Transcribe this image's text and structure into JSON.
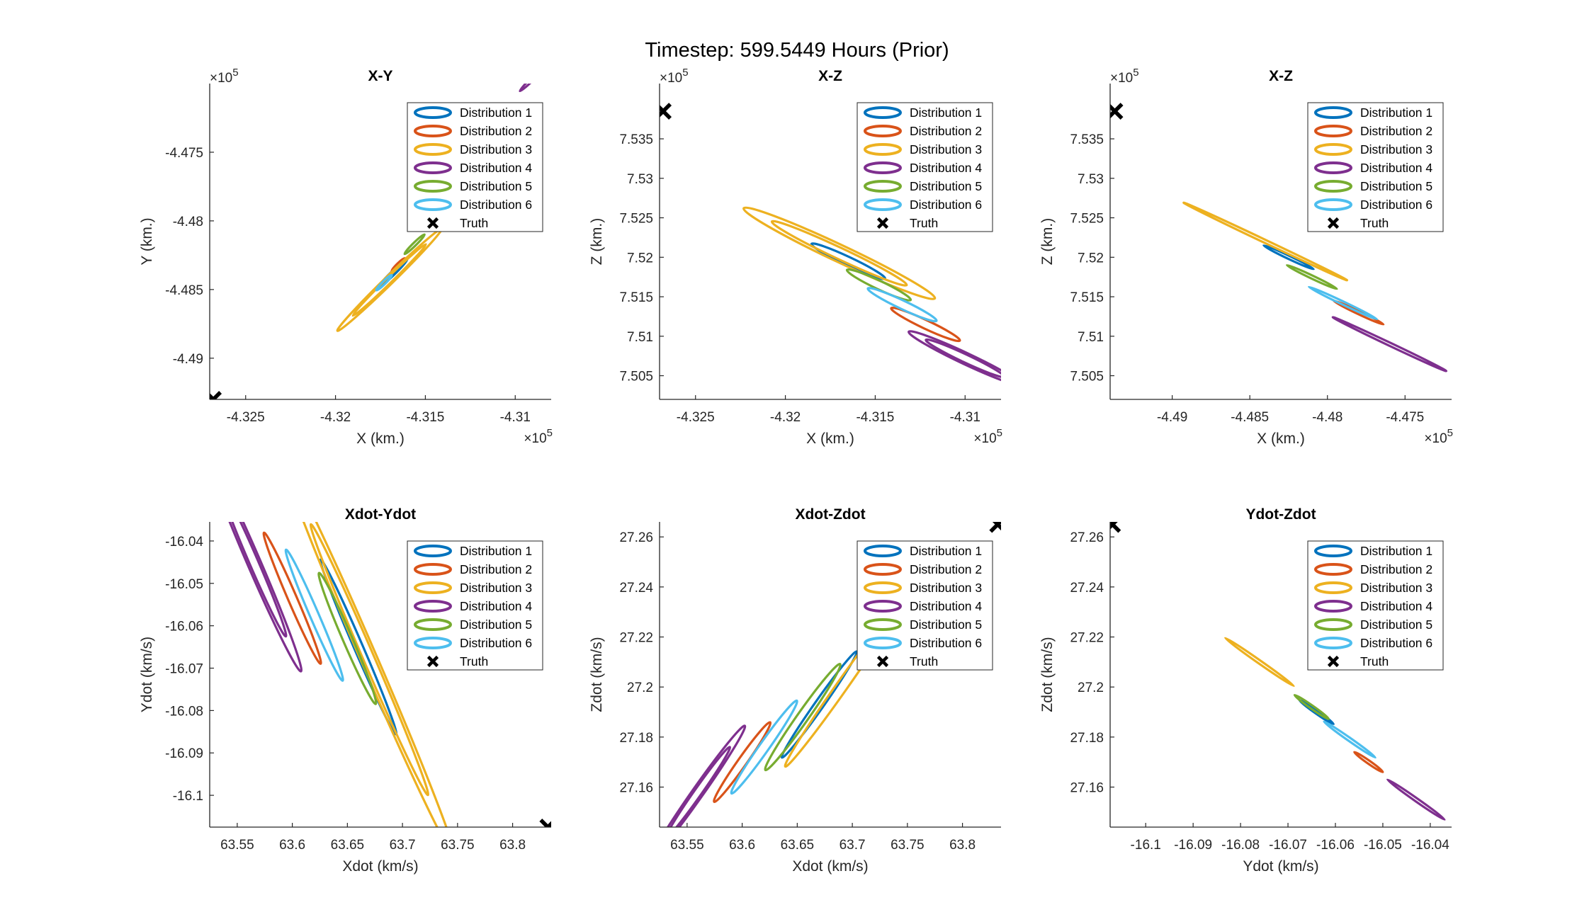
{
  "figure": {
    "title": "Timestep: 599.5449 Hours (Prior)"
  },
  "colors": {
    "Distribution 1": "#0072BD",
    "Distribution 2": "#D95319",
    "Distribution 3": "#EDB120",
    "Distribution 4": "#7E2F8E",
    "Distribution 5": "#77AC30",
    "Distribution 6": "#4DBEEE",
    "Truth": "#000000"
  },
  "chart_data": [
    {
      "type": "scatter",
      "title": "X-Y",
      "xlabel": "X (km.)",
      "ylabel": "Y (km.)",
      "xlim": [
        -432.7,
        -430.8
      ],
      "ylim": [
        -449.3,
        -447.0
      ],
      "x_exponent": "×10",
      "y_exponent": "×10",
      "exponent_power": "5",
      "xticks": [
        -432.5,
        -432,
        -431.5,
        -431
      ],
      "xtick_labels": [
        "-4.325",
        "-4.32",
        "-4.315",
        "-4.31"
      ],
      "yticks": [
        -447.5,
        -448,
        -448.5,
        -449
      ],
      "ytick_labels": [
        "-4.475",
        "-4.48",
        "-4.485",
        "-4.49"
      ],
      "legend_location": "top-right",
      "series": [
        {
          "name": "Distribution 1",
          "ellipses": [
            {
              "cx": -431.68,
              "cy": -448.38,
              "a": 0.13,
              "b": 0.012,
              "ang": 52
            },
            {
              "cx": -431.68,
              "cy": -448.38,
              "a": 0.09,
              "b": 0.008,
              "ang": 52
            }
          ]
        },
        {
          "name": "Distribution 2",
          "ellipses": [
            {
              "cx": -431.65,
              "cy": -448.32,
              "a": 0.06,
              "b": 0.007,
              "ang": 52
            }
          ]
        },
        {
          "name": "Distribution 3",
          "ellipses": [
            {
              "cx": -431.7,
              "cy": -448.43,
              "a": 0.47,
              "b": 0.025,
              "ang": 52
            },
            {
              "cx": -431.7,
              "cy": -448.43,
              "a": 0.33,
              "b": 0.017,
              "ang": 52
            }
          ]
        },
        {
          "name": "Distribution 4",
          "ellipses": [
            {
              "cx": -430.9,
              "cy": -446.96,
              "a": 0.12,
              "b": 0.008,
              "ang": 52
            }
          ]
        },
        {
          "name": "Distribution 5",
          "ellipses": [
            {
              "cx": -431.56,
              "cy": -448.17,
              "a": 0.09,
              "b": 0.008,
              "ang": 52
            }
          ]
        },
        {
          "name": "Distribution 6",
          "ellipses": [
            {
              "cx": -431.73,
              "cy": -448.45,
              "a": 0.07,
              "b": 0.006,
              "ang": 52
            }
          ]
        },
        {
          "name": "Truth",
          "points": [
            {
              "x": -432.68,
              "y": -449.3
            }
          ]
        }
      ]
    },
    {
      "type": "scatter",
      "title": "X-Z",
      "xlabel": "X (km.)",
      "ylabel": "Z (km.)",
      "xlim": [
        -432.7,
        -430.8
      ],
      "ylim": [
        750.2,
        754.2
      ],
      "x_exponent": "×10",
      "y_exponent": "×10",
      "exponent_power": "5",
      "xticks": [
        -432.5,
        -432,
        -431.5,
        -431
      ],
      "xtick_labels": [
        "-4.325",
        "-4.32",
        "-4.315",
        "-4.31"
      ],
      "yticks": [
        750.5,
        751,
        751.5,
        752,
        752.5,
        753,
        753.5
      ],
      "ytick_labels": [
        "7.505",
        "7.51",
        "7.515",
        "7.52",
        "7.525",
        "7.53",
        "7.535"
      ],
      "legend_location": "top-right",
      "series": [
        {
          "name": "Distribution 1",
          "ellipses": [
            {
              "cx": -431.65,
              "cy": 751.95,
              "a": 0.3,
              "b": 0.03,
              "ang": -47
            }
          ]
        },
        {
          "name": "Distribution 2",
          "ellipses": [
            {
              "cx": -431.22,
              "cy": 751.15,
              "a": 0.28,
              "b": 0.03,
              "ang": -47
            }
          ]
        },
        {
          "name": "Distribution 3",
          "ellipses": [
            {
              "cx": -431.7,
              "cy": 752.05,
              "a": 0.78,
              "b": 0.06,
              "ang": -47
            },
            {
              "cx": -431.7,
              "cy": 752.05,
              "a": 0.55,
              "b": 0.04,
              "ang": -47
            }
          ]
        },
        {
          "name": "Distribution 4",
          "ellipses": [
            {
              "cx": -431.0,
              "cy": 750.72,
              "a": 0.46,
              "b": 0.04,
              "ang": -47
            },
            {
              "cx": -431.0,
              "cy": 750.72,
              "a": 0.32,
              "b": 0.028,
              "ang": -47
            }
          ]
        },
        {
          "name": "Distribution 5",
          "ellipses": [
            {
              "cx": -431.48,
              "cy": 751.65,
              "a": 0.26,
              "b": 0.03,
              "ang": -47
            }
          ]
        },
        {
          "name": "Distribution 6",
          "ellipses": [
            {
              "cx": -431.35,
              "cy": 751.4,
              "a": 0.28,
              "b": 0.03,
              "ang": -47
            }
          ]
        },
        {
          "name": "Truth",
          "points": [
            {
              "x": -432.68,
              "y": 753.85
            }
          ]
        }
      ]
    },
    {
      "type": "scatter",
      "title": "X-Z",
      "xlabel": "X (km.)",
      "ylabel": "Z (km.)",
      "xlim": [
        -449.4,
        -447.2
      ],
      "ylim": [
        750.2,
        754.2
      ],
      "x_exponent": "×10",
      "y_exponent": "×10",
      "exponent_power": "5",
      "xticks": [
        -449,
        -448.5,
        -448,
        -447.5
      ],
      "xtick_labels": [
        "-4.49",
        "-4.485",
        "-4.48",
        "-4.475"
      ],
      "yticks": [
        750.5,
        751,
        751.5,
        752,
        752.5,
        753,
        753.5
      ],
      "ytick_labels": [
        "7.505",
        "7.51",
        "7.515",
        "7.52",
        "7.525",
        "7.53",
        "7.535"
      ],
      "legend_location": "top-right",
      "series": [
        {
          "name": "Distribution 1",
          "ellipses": [
            {
              "cx": -448.25,
              "cy": 752.0,
              "a": 0.22,
              "b": 0.006,
              "ang": -43
            }
          ]
        },
        {
          "name": "Distribution 2",
          "ellipses": [
            {
              "cx": -447.8,
              "cy": 751.3,
              "a": 0.22,
              "b": 0.006,
              "ang": -43
            }
          ]
        },
        {
          "name": "Distribution 3",
          "ellipses": [
            {
              "cx": -448.4,
              "cy": 752.2,
              "a": 0.72,
              "b": 0.012,
              "ang": -43
            }
          ]
        },
        {
          "name": "Distribution 4",
          "ellipses": [
            {
              "cx": -447.6,
              "cy": 750.9,
              "a": 0.5,
              "b": 0.01,
              "ang": -43
            }
          ]
        },
        {
          "name": "Distribution 5",
          "ellipses": [
            {
              "cx": -448.1,
              "cy": 751.75,
              "a": 0.22,
              "b": 0.008,
              "ang": -43
            }
          ]
        },
        {
          "name": "Distribution 6",
          "ellipses": [
            {
              "cx": -447.9,
              "cy": 751.42,
              "a": 0.3,
              "b": 0.008,
              "ang": -43
            }
          ]
        },
        {
          "name": "Truth",
          "points": [
            {
              "x": -449.37,
              "y": 753.85
            }
          ]
        }
      ]
    },
    {
      "type": "scatter",
      "title": "Xdot-Ydot",
      "xlabel": "Xdot (km/s)",
      "ylabel": "Ydot (km/s)",
      "xlim": [
        63.525,
        63.835
      ],
      "ylim": [
        -16.1075,
        -16.0355
      ],
      "xticks": [
        63.55,
        63.6,
        63.65,
        63.7,
        63.75,
        63.8
      ],
      "xtick_labels": [
        "63.55",
        "63.6",
        "63.65",
        "63.7",
        "63.75",
        "63.8"
      ],
      "yticks": [
        -16.04,
        -16.05,
        -16.06,
        -16.07,
        -16.08,
        -16.09,
        -16.1
      ],
      "ytick_labels": [
        "-16.04",
        "-16.05",
        "-16.06",
        "-16.07",
        "-16.08",
        "-16.09",
        "-16.1"
      ],
      "legend_location": "top-right",
      "series": [
        {
          "name": "Distribution 1",
          "ellipses": [
            {
              "cx": 63.66,
              "cy": -16.065,
              "a": 0.04,
              "b": 0.0012,
              "ang": -31
            }
          ]
        },
        {
          "name": "Distribution 2",
          "ellipses": [
            {
              "cx": 63.6,
              "cy": -16.0535,
              "a": 0.03,
              "b": 0.0012,
              "ang": -31
            }
          ]
        },
        {
          "name": "Distribution 3",
          "ellipses": [
            {
              "cx": 63.67,
              "cy": -16.068,
              "a": 0.09,
              "b": 0.0022,
              "ang": -31
            },
            {
              "cx": 63.67,
              "cy": -16.068,
              "a": 0.062,
              "b": 0.0015,
              "ang": -31
            }
          ]
        },
        {
          "name": "Distribution 4",
          "ellipses": [
            {
              "cx": 63.565,
              "cy": -16.045,
              "a": 0.05,
              "b": 0.0018,
              "ang": -31
            },
            {
              "cx": 63.565,
              "cy": -16.045,
              "a": 0.034,
              "b": 0.0012,
              "ang": -31
            }
          ]
        },
        {
          "name": "Distribution 5",
          "ellipses": [
            {
              "cx": 63.65,
              "cy": -16.063,
              "a": 0.03,
              "b": 0.0013,
              "ang": -31
            }
          ]
        },
        {
          "name": "Distribution 6",
          "ellipses": [
            {
              "cx": 63.62,
              "cy": -16.0575,
              "a": 0.03,
              "b": 0.0012,
              "ang": -31
            }
          ]
        },
        {
          "name": "Truth",
          "points": [
            {
              "x": 63.832,
              "y": -16.1075
            }
          ]
        }
      ]
    },
    {
      "type": "scatter",
      "title": "Xdot-Zdot",
      "xlabel": "Xdot (km/s)",
      "ylabel": "Zdot (km/s)",
      "xlim": [
        63.525,
        63.835
      ],
      "ylim": [
        27.144,
        27.266
      ],
      "xticks": [
        63.55,
        63.6,
        63.65,
        63.7,
        63.75,
        63.8
      ],
      "xtick_labels": [
        "63.55",
        "63.6",
        "63.65",
        "63.7",
        "63.75",
        "63.8"
      ],
      "yticks": [
        27.16,
        27.18,
        27.2,
        27.22,
        27.24,
        27.26
      ],
      "ytick_labels": [
        "27.16",
        "27.18",
        "27.2",
        "27.22",
        "27.24",
        "27.26"
      ],
      "legend_location": "top-right",
      "series": [
        {
          "name": "Distribution 1",
          "ellipses": [
            {
              "cx": 63.67,
              "cy": 27.193,
              "a": 0.04,
              "b": 0.002,
              "ang": 32
            }
          ]
        },
        {
          "name": "Distribution 2",
          "ellipses": [
            {
              "cx": 63.6,
              "cy": 27.17,
              "a": 0.03,
              "b": 0.002,
              "ang": 32
            }
          ]
        },
        {
          "name": "Distribution 3",
          "ellipses": [
            {
              "cx": 63.69,
              "cy": 27.2,
              "a": 0.06,
              "b": 0.0025,
              "ang": 32
            }
          ]
        },
        {
          "name": "Distribution 4",
          "ellipses": [
            {
              "cx": 63.56,
              "cy": 27.158,
              "a": 0.05,
              "b": 0.0025,
              "ang": 32
            },
            {
              "cx": 63.56,
              "cy": 27.158,
              "a": 0.034,
              "b": 0.0017,
              "ang": 32
            }
          ]
        },
        {
          "name": "Distribution 5",
          "ellipses": [
            {
              "cx": 63.655,
              "cy": 27.188,
              "a": 0.04,
              "b": 0.0025,
              "ang": 32
            }
          ]
        },
        {
          "name": "Distribution 6",
          "ellipses": [
            {
              "cx": 63.62,
              "cy": 27.176,
              "a": 0.035,
              "b": 0.0022,
              "ang": 32
            }
          ]
        },
        {
          "name": "Truth",
          "points": [
            {
              "x": 63.832,
              "y": 27.265
            }
          ]
        }
      ]
    },
    {
      "type": "scatter",
      "title": "Ydot-Zdot",
      "xlabel": "Ydot (km/s)",
      "ylabel": "Zdot (km/s)",
      "xlim": [
        -16.1075,
        -16.0355
      ],
      "ylim": [
        27.144,
        27.266
      ],
      "xticks": [
        -16.1,
        -16.09,
        -16.08,
        -16.07,
        -16.06,
        -16.05,
        -16.04
      ],
      "xtick_labels": [
        "-16.1",
        "-16.09",
        "-16.08",
        "-16.07",
        "-16.06",
        "-16.05",
        "-16.04"
      ],
      "yticks": [
        27.16,
        27.18,
        27.2,
        27.22,
        27.24,
        27.26
      ],
      "ytick_labels": [
        "27.16",
        "27.18",
        "27.2",
        "27.22",
        "27.24",
        "27.26"
      ],
      "legend_location": "top-right",
      "series": [
        {
          "name": "Distribution 1",
          "ellipses": [
            {
              "cx": -16.064,
              "cy": 27.19,
              "a": 0.006,
              "b": 0.0003,
              "ang": -53
            }
          ]
        },
        {
          "name": "Distribution 2",
          "ellipses": [
            {
              "cx": -16.053,
              "cy": 27.17,
              "a": 0.005,
              "b": 0.0003,
              "ang": -53
            }
          ]
        },
        {
          "name": "Distribution 3",
          "ellipses": [
            {
              "cx": -16.076,
              "cy": 27.21,
              "a": 0.012,
              "b": 0.0004,
              "ang": -53
            }
          ]
        },
        {
          "name": "Distribution 4",
          "ellipses": [
            {
              "cx": -16.043,
              "cy": 27.155,
              "a": 0.01,
              "b": 0.0004,
              "ang": -53
            }
          ]
        },
        {
          "name": "Distribution 5",
          "ellipses": [
            {
              "cx": -16.065,
              "cy": 27.192,
              "a": 0.006,
              "b": 0.0004,
              "ang": -53
            }
          ]
        },
        {
          "name": "Distribution 6",
          "ellipses": [
            {
              "cx": -16.057,
              "cy": 27.179,
              "a": 0.009,
              "b": 0.0004,
              "ang": -53
            }
          ]
        },
        {
          "name": "Truth",
          "points": [
            {
              "x": -16.107,
              "y": 27.265
            }
          ]
        }
      ]
    }
  ]
}
